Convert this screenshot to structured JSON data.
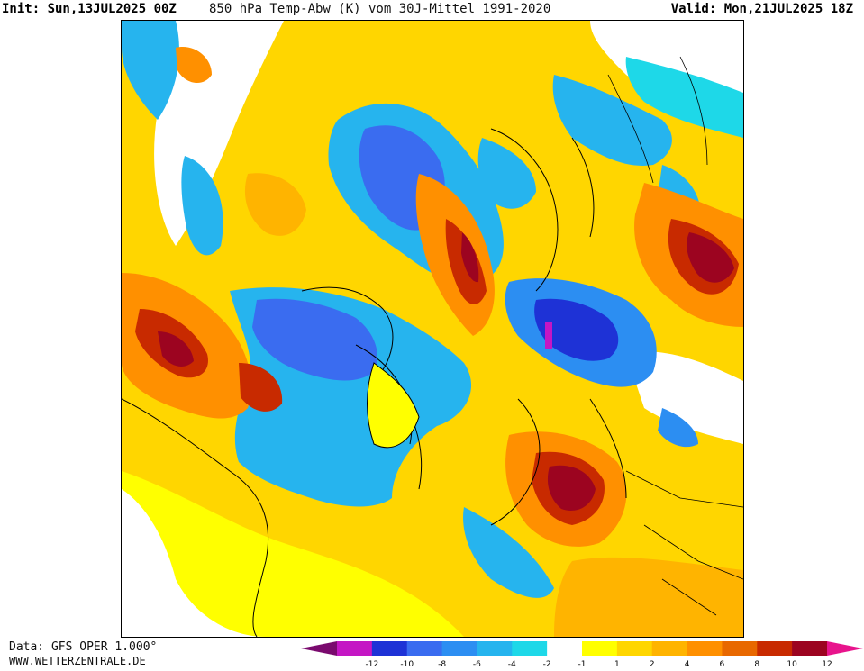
{
  "header": {
    "init": "Init: Sun,13JUL2025 00Z",
    "title": "850 hPa Temp-Abw (K) vom 30J-Mittel 1991-2020",
    "valid": "Valid: Mon,21JUL2025 18Z"
  },
  "footer": {
    "data_source": "Data: GFS OPER 1.000°",
    "website": "WWW.WETTERZENTRALE.DE"
  },
  "legend": {
    "colors": [
      "#7a0a6e",
      "#c416c4",
      "#1e32d6",
      "#3a6cf0",
      "#2c8ef2",
      "#26b4ee",
      "#1ed8e8",
      "#ffffff",
      "#ffff00",
      "#ffd600",
      "#ffb400",
      "#ff9000",
      "#e86800",
      "#c82a00",
      "#9c0420",
      "#e8148c"
    ],
    "ticks": [
      "-12",
      "-10",
      "-8",
      "-6",
      "-4",
      "-2",
      "-1",
      "1",
      "2",
      "4",
      "6",
      "8",
      "10",
      "12"
    ]
  },
  "map": {
    "palette": {
      "warm_strong": "#c82a00",
      "warm_extreme": "#9c0420",
      "warm_mid": "#ff9000",
      "warm_light": "#ffd600",
      "cold_light": "#26b4ee",
      "cold_mid": "#2c8ef2",
      "cold_strong": "#1e32d6",
      "cold_extreme": "#c416c4",
      "neutral": "#ffffff"
    }
  }
}
